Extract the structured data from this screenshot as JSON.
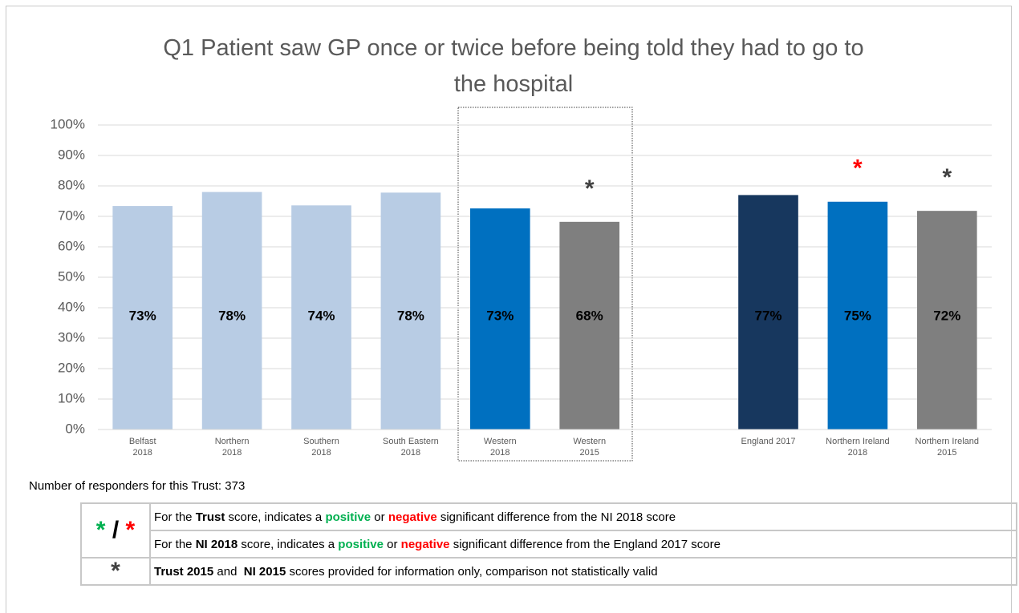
{
  "chart_data": {
    "type": "bar",
    "title": "Q1 Patient saw GP once or twice before being told they had to go to the hospital",
    "categories": [
      [
        "Belfast",
        "2018"
      ],
      [
        "Northern",
        "2018"
      ],
      [
        "Southern",
        "2018"
      ],
      [
        "South Eastern",
        "2018"
      ],
      [
        "Western",
        "2018"
      ],
      [
        "Western",
        "2015"
      ],
      null,
      [
        "England 2017"
      ],
      [
        "Northern Ireland",
        "2018"
      ],
      [
        "Northern Ireland",
        "2015"
      ]
    ],
    "values": [
      73.4,
      78,
      73.6,
      77.8,
      72.6,
      68.2,
      null,
      77,
      74.8,
      71.8
    ],
    "value_labels": [
      "73%",
      "78%",
      "74%",
      "78%",
      "73%",
      "68%",
      null,
      "77%",
      "75%",
      "72%"
    ],
    "colors": [
      "#b8cce4",
      "#b8cce4",
      "#b8cce4",
      "#b8cce4",
      "#0070c0",
      "#7f7f7f",
      null,
      "#17375e",
      "#0070c0",
      "#7f7f7f"
    ],
    "significance": [
      null,
      null,
      null,
      null,
      null,
      "*",
      null,
      null,
      "*",
      "*"
    ],
    "significance_colors": [
      null,
      null,
      null,
      null,
      null,
      "#404040",
      null,
      null,
      "#ff0000",
      "#404040"
    ],
    "ylim": [
      0,
      100
    ],
    "yticks": [
      {
        "value": 0,
        "label": "0%"
      },
      {
        "value": 10,
        "label": "10%"
      },
      {
        "value": 20,
        "label": "20%"
      },
      {
        "value": 30,
        "label": "30%"
      },
      {
        "value": 40,
        "label": "40%"
      },
      {
        "value": 50,
        "label": "50%"
      },
      {
        "value": 60,
        "label": "60%"
      },
      {
        "value": 70,
        "label": "70%"
      },
      {
        "value": 80,
        "label": "80%"
      },
      {
        "value": 90,
        "label": "90%"
      },
      {
        "value": 100,
        "label": "100%"
      }
    ],
    "grid": true
  },
  "key": {
    "note": "Number of responders for this Trust: 373",
    "rows": [
      {
        "symbol": [
          {
            "text": "*",
            "color": "#00b050"
          },
          {
            "text": " / ",
            "color": "#000000"
          },
          {
            "text": "*",
            "color": "#ff0000"
          }
        ],
        "lines": [
          [
            {
              "text": "For the "
            },
            {
              "text": "Trust",
              "bold": true
            },
            {
              "text": " score, indicates a "
            },
            {
              "text": "positive",
              "bold": true,
              "color": "#00b050"
            },
            {
              "text": " or "
            },
            {
              "text": "negative",
              "bold": true,
              "color": "#ff0000"
            },
            {
              "text": " significant difference from the NI 2018 score"
            }
          ],
          [
            {
              "text": "For the "
            },
            {
              "text": "NI 2018",
              "bold": true
            },
            {
              "text": " score, indicates a "
            },
            {
              "text": "positive",
              "bold": true,
              "color": "#00b050"
            },
            {
              "text": " or "
            },
            {
              "text": "negative",
              "bold": true,
              "color": "#ff0000"
            },
            {
              "text": " significant difference from the England 2017 score"
            }
          ]
        ]
      },
      {
        "symbol": [
          {
            "text": "*",
            "color": "#404040"
          }
        ],
        "lines": [
          [
            {
              "text": "Trust 2015",
              "bold": true
            },
            {
              "text": " and  "
            },
            {
              "text": "NI 2015",
              "bold": true
            },
            {
              "text": " scores provided for information only, comparison not statistically valid"
            }
          ]
        ]
      }
    ]
  }
}
